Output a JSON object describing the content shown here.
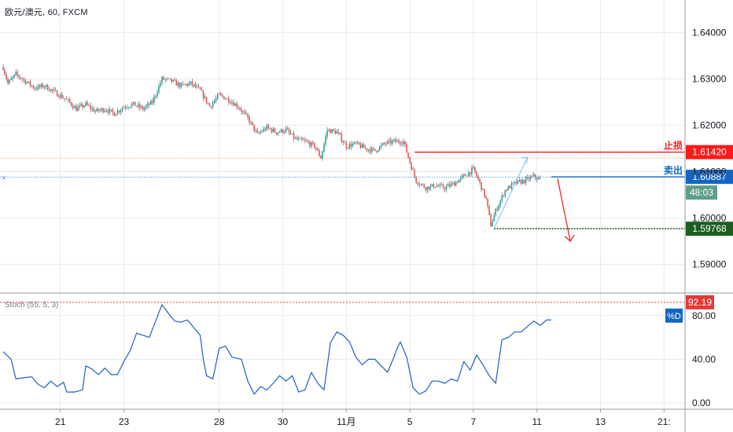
{
  "header": {
    "symbol": "欧元/澳元, 60, FXCM"
  },
  "oscillator": {
    "label": "Stoch (55, 5, 3)"
  },
  "colors": {
    "up": "#26a69a",
    "down": "#ef5350",
    "candle_wick": "#5d606b",
    "stop": "#ff1a1a",
    "sell": "#1565c0",
    "target": "#1b5e20",
    "stoch": "#1d5fc9",
    "arrow_up": "#90caf9",
    "arrow_down": "#e53935",
    "countdown_bg": "#5f9e87",
    "grid": "#e6e9ef"
  },
  "chart_data": [
    {
      "type": "candlestick",
      "title": "欧元/澳元, 60, FXCM",
      "ylim": [
        1.584,
        1.647
      ],
      "y_ticks": [
        "1.64000",
        "1.63000",
        "1.62000",
        "1.61000",
        "1.60000",
        "1.59000"
      ],
      "y_tick_values": [
        1.64,
        1.63,
        1.62,
        1.61,
        1.6,
        1.59
      ],
      "x_ticks": [
        "21",
        "23",
        "28",
        "30",
        "11月",
        "5",
        "7",
        "11",
        "13",
        "21:"
      ],
      "x_tick_index": [
        36,
        76,
        136,
        176,
        216,
        256,
        296,
        336,
        376,
        416
      ],
      "x_range": [
        0,
        440
      ],
      "close_anchors": [
        [
          0,
          1.6325
        ],
        [
          3,
          1.629
        ],
        [
          8,
          1.631
        ],
        [
          14,
          1.6295
        ],
        [
          20,
          1.628
        ],
        [
          26,
          1.6285
        ],
        [
          33,
          1.627
        ],
        [
          40,
          1.6255
        ],
        [
          46,
          1.6235
        ],
        [
          52,
          1.6245
        ],
        [
          58,
          1.623
        ],
        [
          64,
          1.6235
        ],
        [
          70,
          1.6225
        ],
        [
          76,
          1.624
        ],
        [
          82,
          1.6245
        ],
        [
          88,
          1.6235
        ],
        [
          94,
          1.625
        ],
        [
          100,
          1.63
        ],
        [
          106,
          1.6295
        ],
        [
          112,
          1.6285
        ],
        [
          118,
          1.629
        ],
        [
          124,
          1.6275
        ],
        [
          130,
          1.624
        ],
        [
          136,
          1.6265
        ],
        [
          142,
          1.6255
        ],
        [
          148,
          1.624
        ],
        [
          154,
          1.6215
        ],
        [
          160,
          1.618
        ],
        [
          166,
          1.6195
        ],
        [
          172,
          1.6185
        ],
        [
          178,
          1.619
        ],
        [
          184,
          1.617
        ],
        [
          190,
          1.6165
        ],
        [
          196,
          1.6155
        ],
        [
          200,
          1.613
        ],
        [
          204,
          1.619
        ],
        [
          210,
          1.6185
        ],
        [
          216,
          1.6155
        ],
        [
          222,
          1.616
        ],
        [
          228,
          1.615
        ],
        [
          234,
          1.6145
        ],
        [
          240,
          1.616
        ],
        [
          246,
          1.6165
        ],
        [
          252,
          1.6165
        ],
        [
          256,
          1.612
        ],
        [
          260,
          1.608
        ],
        [
          266,
          1.6065
        ],
        [
          272,
          1.607
        ],
        [
          278,
          1.6065
        ],
        [
          284,
          1.6075
        ],
        [
          290,
          1.609
        ],
        [
          296,
          1.6105
        ],
        [
          300,
          1.6075
        ],
        [
          304,
          1.604
        ],
        [
          307,
          1.5985
        ],
        [
          310,
          1.6015
        ],
        [
          316,
          1.606
        ],
        [
          322,
          1.6075
        ],
        [
          328,
          1.608
        ],
        [
          334,
          1.609
        ],
        [
          338,
          1.6082
        ]
      ],
      "levels": [
        {
          "name": "stop",
          "label": "止损",
          "value": 1.6142,
          "value_label": "1.61420",
          "x_start": 259
        },
        {
          "name": "sell",
          "label": "卖出",
          "value": 1.60887,
          "value_label": "1.60887",
          "x_start": 345
        },
        {
          "name": "target",
          "label": "",
          "value": 1.59768,
          "value_label": "1.59768",
          "x_start": 309
        }
      ],
      "dotted_lines": [
        {
          "name": "dotted-level-orange",
          "value": 1.6129
        },
        {
          "name": "dotted-level-blue",
          "value": 1.6088
        }
      ],
      "countdown": "48:03",
      "projection_up": [
        [
          309,
          1.5977
        ],
        [
          330,
          1.6131
        ]
      ],
      "projection_down": [
        [
          349,
          1.6085
        ],
        [
          357,
          1.595
        ]
      ]
    },
    {
      "type": "line",
      "title": "Stoch (55, 5, 3)",
      "ylim": [
        -5,
        100
      ],
      "y_ticks": [
        "80.00",
        "40.00",
        "0.00"
      ],
      "y_tick_values": [
        80,
        40,
        0
      ],
      "overbought_level": 92.19,
      "overbought_label": "92.19",
      "series": [
        {
          "name": "%D",
          "points": [
            [
              0,
              47
            ],
            [
              5,
              40
            ],
            [
              8,
              22
            ],
            [
              12,
              23
            ],
            [
              18,
              24
            ],
            [
              22,
              17
            ],
            [
              26,
              14
            ],
            [
              30,
              20
            ],
            [
              34,
              15
            ],
            [
              38,
              19
            ],
            [
              40,
              10
            ],
            [
              45,
              10
            ],
            [
              50,
              12
            ],
            [
              52,
              34
            ],
            [
              56,
              31
            ],
            [
              60,
              26
            ],
            [
              64,
              32
            ],
            [
              68,
              26
            ],
            [
              72,
              26
            ],
            [
              76,
              38
            ],
            [
              80,
              48
            ],
            [
              84,
              64
            ],
            [
              88,
              62
            ],
            [
              92,
              60
            ],
            [
              96,
              75
            ],
            [
              100,
              90
            ],
            [
              104,
              82
            ],
            [
              108,
              75
            ],
            [
              112,
              74
            ],
            [
              116,
              76
            ],
            [
              120,
              69
            ],
            [
              124,
              62
            ],
            [
              126,
              40
            ],
            [
              128,
              25
            ],
            [
              132,
              22
            ],
            [
              136,
              50
            ],
            [
              140,
              52
            ],
            [
              144,
              42
            ],
            [
              150,
              40
            ],
            [
              154,
              20
            ],
            [
              158,
              8
            ],
            [
              162,
              15
            ],
            [
              166,
              12
            ],
            [
              170,
              18
            ],
            [
              174,
              25
            ],
            [
              178,
              20
            ],
            [
              182,
              25
            ],
            [
              186,
              10
            ],
            [
              190,
              12
            ],
            [
              194,
              28
            ],
            [
              198,
              18
            ],
            [
              202,
              12
            ],
            [
              206,
              55
            ],
            [
              210,
              65
            ],
            [
              214,
              62
            ],
            [
              218,
              56
            ],
            [
              222,
              42
            ],
            [
              226,
              35
            ],
            [
              230,
              40
            ],
            [
              234,
              40
            ],
            [
              238,
              34
            ],
            [
              242,
              28
            ],
            [
              246,
              42
            ],
            [
              248,
              50
            ],
            [
              250,
              56
            ],
            [
              254,
              42
            ],
            [
              258,
              14
            ],
            [
              262,
              8
            ],
            [
              266,
              11
            ],
            [
              270,
              20
            ],
            [
              274,
              20
            ],
            [
              278,
              18
            ],
            [
              282,
              22
            ],
            [
              286,
              20
            ],
            [
              290,
              38
            ],
            [
              294,
              30
            ],
            [
              298,
              44
            ],
            [
              302,
              35
            ],
            [
              306,
              25
            ],
            [
              310,
              18
            ],
            [
              314,
              58
            ],
            [
              318,
              60
            ],
            [
              322,
              65
            ],
            [
              326,
              65
            ],
            [
              330,
              70
            ],
            [
              334,
              75
            ],
            [
              338,
              71
            ],
            [
              342,
              76
            ],
            [
              345,
              76
            ]
          ]
        }
      ]
    }
  ]
}
